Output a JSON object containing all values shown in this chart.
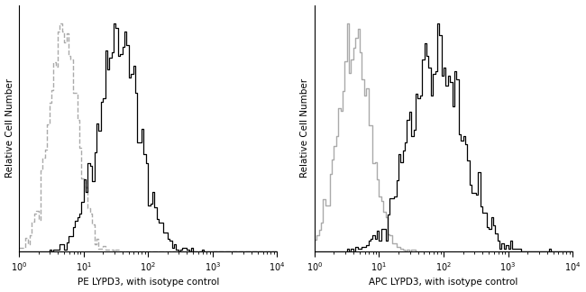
{
  "panels": [
    {
      "xlabel": "PE LYPD3, with isotype control",
      "ylabel": "Relative Cell Number",
      "gray_peak_log": 0.68,
      "gray_sigma_log": 0.22,
      "gray_linestyle": "--",
      "black_peak_log": 1.55,
      "black_sigma_log": 0.32,
      "gray_seed": 1,
      "black_seed": 2
    },
    {
      "xlabel": "APC LYPD3, with isotype control",
      "ylabel": "Relative Cell Number",
      "gray_peak_log": 0.62,
      "gray_sigma_log": 0.25,
      "gray_linestyle": "-",
      "black_peak_log": 1.88,
      "black_sigma_log": 0.42,
      "gray_seed": 3,
      "black_seed": 4
    }
  ],
  "xlim_log": [
    0,
    4
  ],
  "ylim": [
    0,
    1.08
  ],
  "gray_color": "#aaaaaa",
  "black_color": "#000000",
  "background_color": "#ffffff",
  "fig_width": 6.5,
  "fig_height": 3.24,
  "dpi": 100,
  "ylabel_fontsize": 7.5,
  "xlabel_fontsize": 7.5,
  "tick_fontsize": 7.0,
  "n_cells": 3000,
  "n_bins": 120
}
